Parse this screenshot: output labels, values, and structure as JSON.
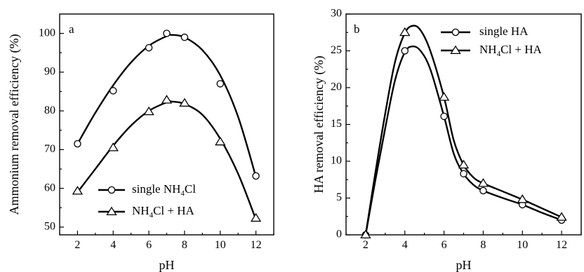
{
  "chart_data": [
    {
      "type": "line",
      "panel_label": "a",
      "xlabel": "pH",
      "ylabel": "Ammonium removal efficiency (%)",
      "xlim": [
        1,
        13
      ],
      "ylim": [
        48,
        105
      ],
      "xticks": [
        2,
        4,
        6,
        8,
        10,
        12
      ],
      "yticks": [
        50,
        60,
        70,
        80,
        90,
        100
      ],
      "grid": false,
      "legend_position": "bottom-center",
      "legend_parts": [
        {
          "base": "single NH",
          "sub": "4",
          "rest": "Cl"
        },
        {
          "base": "NH",
          "sub": "4",
          "rest": "Cl + HA"
        }
      ],
      "series": [
        {
          "name": "single NH4Cl",
          "marker": "circle",
          "x": [
            2,
            4,
            6,
            7,
            8,
            10,
            12
          ],
          "y": [
            71.5,
            85.2,
            96.3,
            100.0,
            99.0,
            87.0,
            63.2
          ],
          "curve": [
            [
              2,
              71.5
            ],
            [
              3,
              79.5
            ],
            [
              4,
              86.6
            ],
            [
              5,
              92.5
            ],
            [
              6,
              96.8
            ],
            [
              7,
              99.3
            ],
            [
              7.3,
              99.6
            ],
            [
              8,
              99.0
            ],
            [
              9,
              95.7
            ],
            [
              10,
              89.2
            ],
            [
              11,
              78.5
            ],
            [
              12,
              63.0
            ]
          ]
        },
        {
          "name": "NH4Cl + HA",
          "marker": "triangle",
          "x": [
            2,
            4,
            6,
            7,
            8,
            10,
            12
          ],
          "y": [
            59.3,
            70.5,
            79.8,
            82.8,
            82.0,
            72.0,
            52.3
          ],
          "curve": [
            [
              2,
              59.0
            ],
            [
              3,
              65.0
            ],
            [
              4,
              71.0
            ],
            [
              5,
              76.2
            ],
            [
              6,
              80.0
            ],
            [
              7,
              82.2
            ],
            [
              7.3,
              82.4
            ],
            [
              8,
              81.8
            ],
            [
              9,
              79.0
            ],
            [
              10,
              72.8
            ],
            [
              11,
              63.8
            ],
            [
              12,
              52.0
            ]
          ]
        }
      ]
    },
    {
      "type": "line",
      "panel_label": "b",
      "xlabel": "pH",
      "ylabel": "HA removal efficiency (%)",
      "xlim": [
        1,
        13
      ],
      "ylim": [
        0,
        30
      ],
      "xticks": [
        2,
        4,
        6,
        8,
        10,
        12
      ],
      "yticks": [
        0,
        5,
        10,
        15,
        20,
        25,
        30
      ],
      "grid": false,
      "legend_position": "top-right",
      "legend_parts": [
        {
          "base": "single HA",
          "sub": "",
          "rest": ""
        },
        {
          "base": "NH",
          "sub": "4",
          "rest": "Cl + HA"
        }
      ],
      "series": [
        {
          "name": "single HA",
          "marker": "circle",
          "x": [
            2,
            4,
            6,
            7,
            8,
            10,
            12
          ],
          "y": [
            0,
            25.0,
            16.1,
            8.3,
            6.0,
            4.1,
            2.0
          ],
          "curve": [
            [
              2,
              0
            ],
            [
              2.5,
              7.5
            ],
            [
              3,
              14.5
            ],
            [
              3.5,
              21.0
            ],
            [
              4,
              24.8
            ],
            [
              4.4,
              25.6
            ],
            [
              4.8,
              25.0
            ],
            [
              5.3,
              22.5
            ],
            [
              6,
              16.1
            ],
            [
              6.5,
              11.0
            ],
            [
              7,
              8.3
            ],
            [
              7.5,
              6.8
            ],
            [
              8,
              6.0
            ],
            [
              9,
              5.0
            ],
            [
              10,
              4.1
            ],
            [
              11,
              3.0
            ],
            [
              12,
              2.0
            ]
          ]
        },
        {
          "name": "NH4Cl + HA",
          "marker": "triangle",
          "x": [
            2,
            4,
            6,
            7,
            8,
            10,
            12
          ],
          "y": [
            0,
            27.5,
            18.7,
            9.5,
            7.0,
            4.8,
            2.4
          ],
          "curve": [
            [
              2,
              0
            ],
            [
              2.5,
              8.5
            ],
            [
              3,
              16.5
            ],
            [
              3.5,
              23.5
            ],
            [
              4,
              27.4
            ],
            [
              4.4,
              28.4
            ],
            [
              4.8,
              27.8
            ],
            [
              5.3,
              25.0
            ],
            [
              6,
              18.7
            ],
            [
              6.5,
              12.8
            ],
            [
              7,
              9.5
            ],
            [
              7.5,
              7.8
            ],
            [
              8,
              7.0
            ],
            [
              9,
              5.9
            ],
            [
              10,
              4.8
            ],
            [
              11,
              3.6
            ],
            [
              12,
              2.4
            ]
          ]
        }
      ]
    }
  ]
}
